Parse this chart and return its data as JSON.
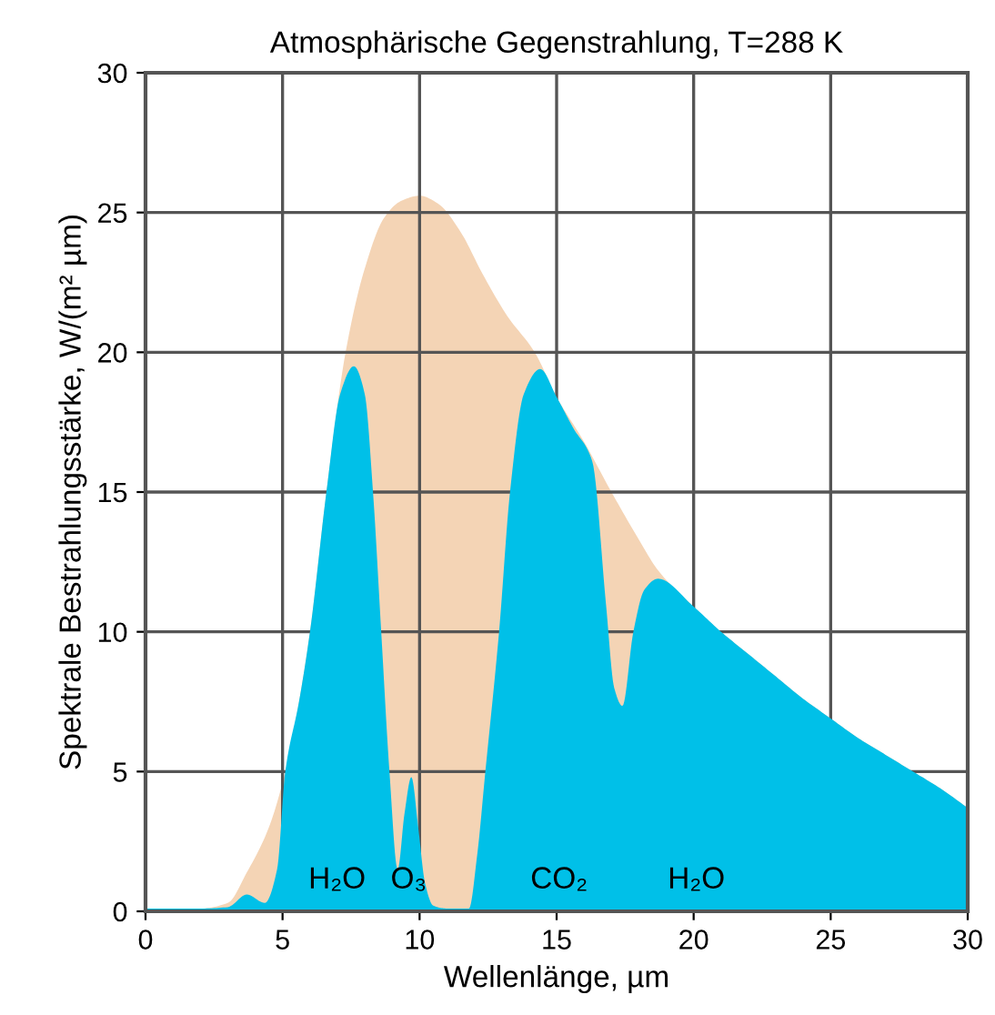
{
  "chart_data": {
    "type": "area",
    "title": "Atmosphärische Gegenstrahlung, T=288 K",
    "xlabel": "Wellenlänge, µm",
    "ylabel": "Spektrale Bestrahlungsstärke, W/(m² µm)",
    "series": [
      {
        "color": "#f4d4b5",
        "x": [
          0,
          2,
          3,
          3.7,
          4.5,
          5.1,
          5.6,
          6.0,
          6.6,
          7.3,
          8,
          8.7,
          9.3,
          10,
          10.7,
          11.5,
          12.3,
          13.2,
          14.2,
          15,
          16,
          17,
          18,
          18.7,
          20,
          21,
          22,
          23,
          24,
          25,
          26,
          27,
          28,
          29,
          30
        ],
        "values": [
          0.1,
          0.1,
          0.3,
          1.4,
          3.0,
          5,
          7.5,
          10,
          15,
          20,
          23,
          24.8,
          25.4,
          25.6,
          25.3,
          24.3,
          22.8,
          21.3,
          20,
          18.4,
          16.8,
          15,
          13.3,
          12.2,
          10.9,
          10,
          9.2,
          8.4,
          7.6,
          6.9,
          6.2,
          5.6,
          5,
          4.4,
          3.7
        ]
      },
      {
        "color": "#00c0e8",
        "x": [
          0,
          2,
          3,
          3.7,
          4.35,
          4.8,
          5.1,
          5.6,
          6.0,
          6.6,
          7.1,
          7.6,
          8.0,
          8.3,
          8.6,
          8.9,
          9.2,
          9.45,
          9.7,
          9.95,
          10.2,
          10.5,
          11,
          11.8,
          12.1,
          12.4,
          12.9,
          13.3,
          13.8,
          14.4,
          15,
          15.6,
          16.3,
          16.8,
          17.1,
          17.4,
          17.8,
          18.2,
          18.7,
          20,
          21,
          22,
          23,
          24,
          25,
          26,
          27,
          28,
          29,
          30
        ],
        "values": [
          0.1,
          0.1,
          0.15,
          0.6,
          0.3,
          1.5,
          5,
          7.5,
          10,
          15,
          18.5,
          19.5,
          18.5,
          15,
          10,
          5,
          1.5,
          3.5,
          4.8,
          3,
          1,
          0.2,
          0.1,
          0.1,
          2,
          5,
          10,
          15,
          18.5,
          19.4,
          18.4,
          17.3,
          16.1,
          11,
          8,
          7.35,
          10,
          11.5,
          11.9,
          10.9,
          10,
          9.2,
          8.4,
          7.6,
          6.9,
          6.2,
          5.6,
          5,
          4.4,
          3.7
        ]
      }
    ],
    "xlim": [
      0,
      30
    ],
    "ylim": [
      0,
      30
    ],
    "xticks": [
      0,
      5,
      10,
      15,
      20,
      25,
      30
    ],
    "yticks": [
      0,
      5,
      10,
      15,
      20,
      25,
      30
    ],
    "grid": true,
    "legend": false,
    "annotations": [
      "H₂O",
      "O₃",
      "CO₂",
      "H₂O"
    ]
  }
}
